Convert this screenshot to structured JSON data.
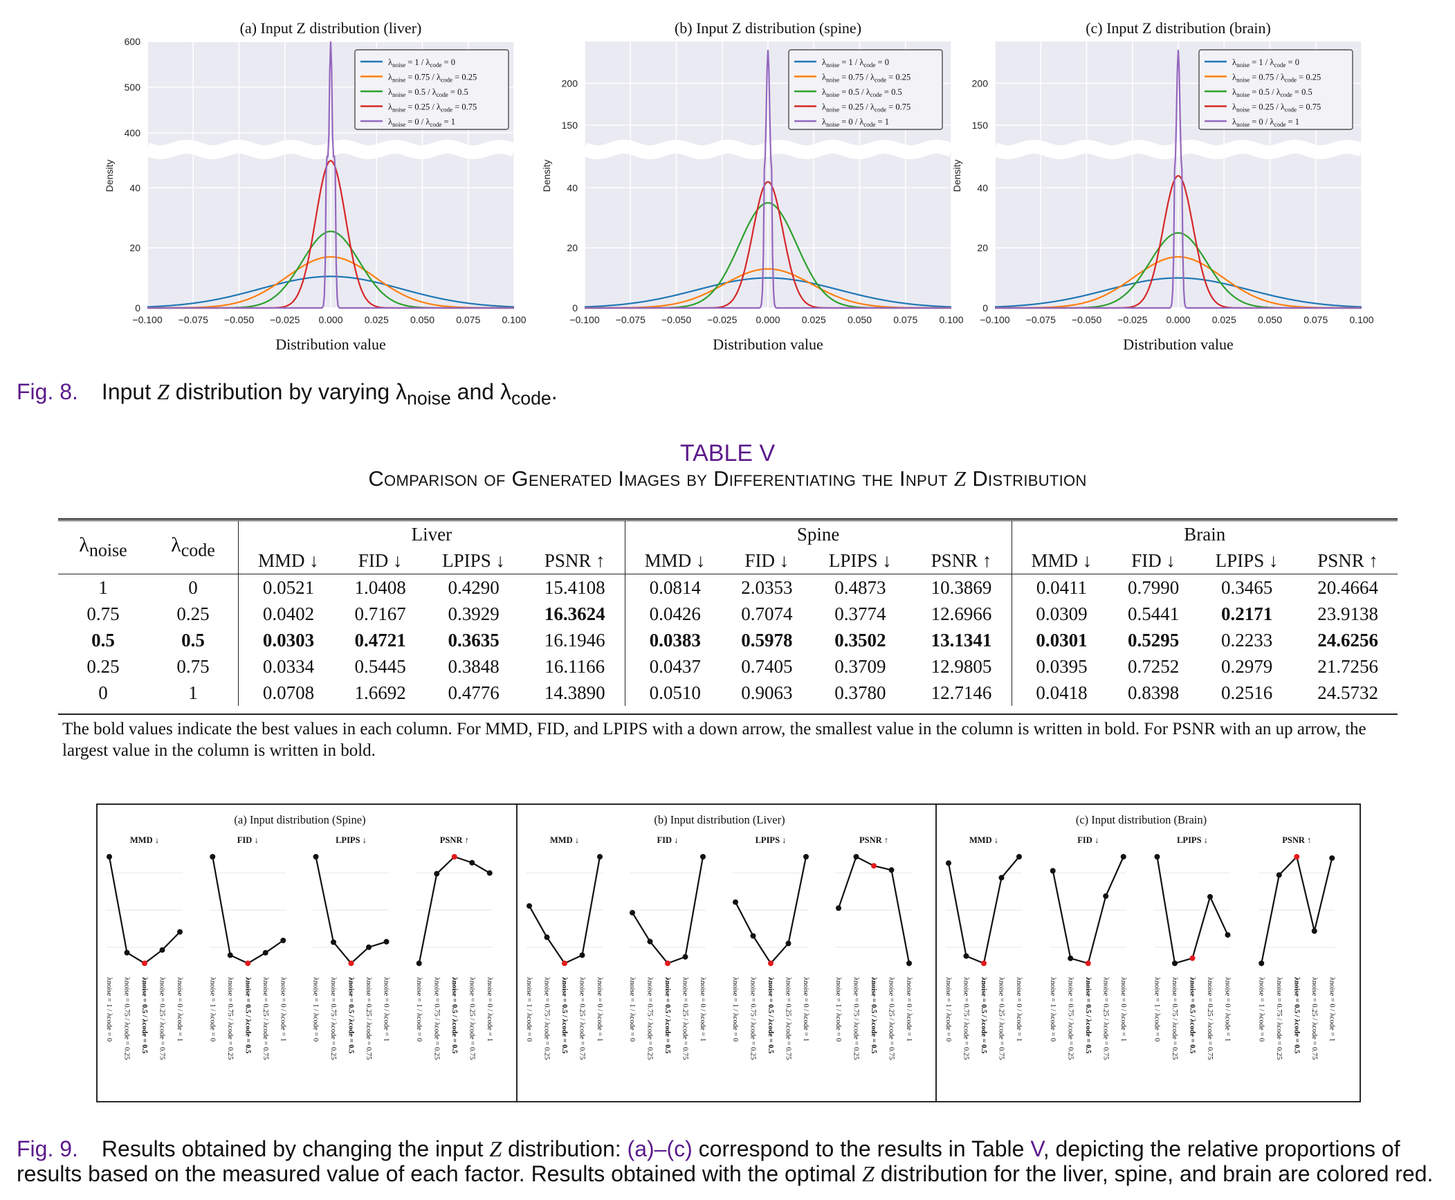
{
  "fig8": {
    "panels": [
      {
        "title": "(a) Input Z distribution (liver)",
        "key": "liver",
        "upper_ticks": [
          "400",
          "500",
          "600"
        ],
        "lower_ticks": [
          "0",
          "20",
          "40"
        ],
        "peaks": {
          "s1": 10.5,
          "s2": 17,
          "s3": 25.5,
          "s4": 49,
          "s5": 600
        }
      },
      {
        "title": "(b) Input Z distribution (spine)",
        "key": "spine",
        "upper_ticks": [
          "150",
          "200"
        ],
        "lower_ticks": [
          "0",
          "20",
          "40"
        ],
        "peaks": {
          "s1": 10,
          "s2": 13,
          "s3": 35,
          "s4": 42,
          "s5": 240
        }
      },
      {
        "title": "(c) Input Z distribution (brain)",
        "key": "brain",
        "upper_ticks": [
          "150",
          "200"
        ],
        "lower_ticks": [
          "0",
          "20",
          "40"
        ],
        "peaks": {
          "s1": 10,
          "s2": 17,
          "s3": 25,
          "s4": 44,
          "s5": 240
        }
      }
    ],
    "ylabel": "Density",
    "xlabel": "Distribution value",
    "xticks": [
      "−0.100",
      "−0.075",
      "−0.050",
      "−0.025",
      "0.000",
      "0.025",
      "0.050",
      "0.075",
      "0.100"
    ],
    "legend": [
      {
        "noise": "1",
        "code": "0",
        "color": "#1f77b4"
      },
      {
        "noise": "0.75",
        "code": "0.25",
        "color": "#ff7f0e"
      },
      {
        "noise": "0.5",
        "code": "0.5",
        "color": "#2ca02c"
      },
      {
        "noise": "0.25",
        "code": "0.75",
        "color": "#d62728"
      },
      {
        "noise": "0",
        "code": "1",
        "color": "#9467bd"
      }
    ],
    "caption_label": "Fig. 8.",
    "caption_text_1": "Input ",
    "caption_Z": "Z",
    "caption_text_2": " distribution by varying λ",
    "caption_sub_noise": "noise",
    "caption_and": " and λ",
    "caption_sub_code": "code",
    "caption_end": "."
  },
  "table": {
    "label": "TABLE V",
    "title_1": "Comparison of Generated Images by Differentiating the Input ",
    "title_Z": "Z",
    "title_2": " Distribution",
    "col_lambda_noise": "λ",
    "col_lambda_noise_sub": "noise",
    "col_lambda_code": "λ",
    "col_lambda_code_sub": "code",
    "groups": [
      "Liver",
      "Spine",
      "Brain"
    ],
    "metrics": [
      "MMD ↓",
      "FID ↓",
      "LPIPS ↓",
      "PSNR ↑"
    ],
    "rows": [
      {
        "noise": "1",
        "code": "0",
        "vals": [
          "0.0521",
          "1.0408",
          "0.4290",
          "15.4108",
          "0.0814",
          "2.0353",
          "0.4873",
          "10.3869",
          "0.0411",
          "0.7990",
          "0.3465",
          "20.4664"
        ],
        "bold": []
      },
      {
        "noise": "0.75",
        "code": "0.25",
        "vals": [
          "0.0402",
          "0.7167",
          "0.3929",
          "16.3624",
          "0.0426",
          "0.7074",
          "0.3774",
          "12.6966",
          "0.0309",
          "0.5441",
          "0.2171",
          "23.9138"
        ],
        "bold": [
          3,
          10
        ]
      },
      {
        "noise": "0.5",
        "code": "0.5",
        "vals": [
          "0.0303",
          "0.4721",
          "0.3635",
          "16.1946",
          "0.0383",
          "0.5978",
          "0.3502",
          "13.1341",
          "0.0301",
          "0.5295",
          "0.2233",
          "24.6256"
        ],
        "bold": [
          0,
          1,
          2,
          4,
          5,
          6,
          7,
          8,
          9,
          11
        ],
        "bold_lambda": true
      },
      {
        "noise": "0.25",
        "code": "0.75",
        "vals": [
          "0.0334",
          "0.5445",
          "0.3848",
          "16.1166",
          "0.0437",
          "0.7405",
          "0.3709",
          "12.9805",
          "0.0395",
          "0.7252",
          "0.2979",
          "21.7256"
        ],
        "bold": []
      },
      {
        "noise": "0",
        "code": "1",
        "vals": [
          "0.0708",
          "1.6692",
          "0.4776",
          "14.3890",
          "0.0510",
          "0.9063",
          "0.3780",
          "12.7146",
          "0.0418",
          "0.8398",
          "0.2516",
          "24.5732"
        ],
        "bold": []
      }
    ],
    "note": "The bold values indicate the best values in each column. For MMD, FID, and LPIPS with a down arrow, the smallest value in the column is written in bold. For PSNR with an up arrow, the largest value in the column is written in bold."
  },
  "fig9": {
    "panels": [
      {
        "title": "(a) Input distribution (Spine)",
        "group": 1
      },
      {
        "title": "(b) Input distribution (Liver)",
        "group": 0
      },
      {
        "title": "(c) Input distribution (Brain)",
        "group": 2
      }
    ],
    "metric_titles": [
      "MMD ↓",
      "FID ↓",
      "LPIPS ↓",
      "PSNR ↑"
    ],
    "tick_labels": [
      "λnoise = 1 / λcode = 0",
      "λnoise = 0.75 / λcode = 0.25",
      "λnoise = 0.5 / λcode = 0.5",
      "λnoise = 0.25 / λcode = 0.75",
      "λnoise = 0 / λcode = 1"
    ],
    "best_color": "#e31a1c",
    "line_color": "#111111",
    "caption_label": "Fig. 9.",
    "caption_1": "Results obtained by changing the input ",
    "caption_Z": "Z",
    "caption_2": " distribution: ",
    "caption_link": "(a)–(c)",
    "caption_3": " correspond to the results in Table ",
    "caption_table_link": "V",
    "caption_4": ", depicting the relative proportions of results based on the measured value of each factor. Results obtained with the optimal ",
    "caption_5": " distribution for the liver, spine, and brain are colored red."
  }
}
